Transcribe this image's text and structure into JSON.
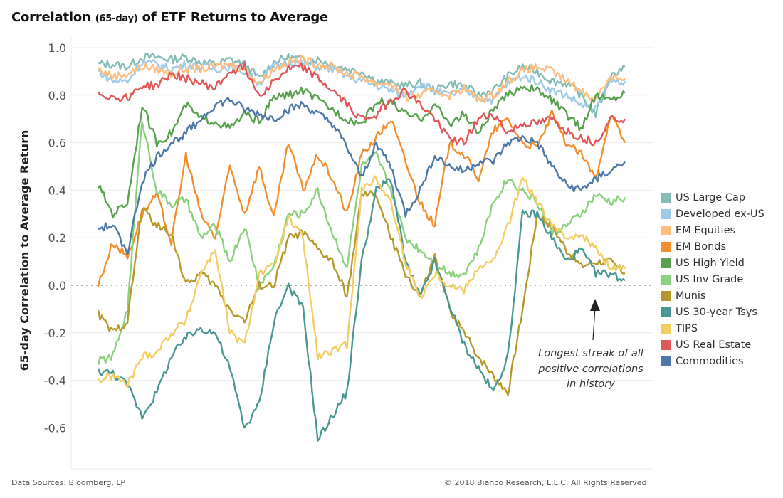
{
  "title": {
    "part1": "Correlation ",
    "part2": "(65-day)",
    "part3": " of ETF Returns to Average"
  },
  "footer": {
    "source": "Data Sources: Bloomberg, LP",
    "copyright": "© 2018 Bianco Research, L.L.C. All Rights Reserved"
  },
  "annotation": "Longest streak of all positive correlations in history",
  "chart_data": {
    "type": "line",
    "title": "Correlation (65-day) of ETF Returns to Average",
    "xlabel": "",
    "ylabel": "65-day Correlation to Average Return",
    "ylim": [
      -0.77,
      1.0
    ],
    "yticks": [
      1.0,
      0.8,
      0.6,
      0.4,
      0.2,
      0.0,
      -0.2,
      -0.4,
      -0.6
    ],
    "ytick_labels": [
      "1.0",
      "0.8",
      "0.6",
      "0.4",
      "0.2",
      "0.0",
      "-0.2",
      "-0.4",
      "-0.6"
    ],
    "grid": true,
    "zero_line": "dotted",
    "legend_position": "right",
    "x_note": "time index 0..36 (no x-axis labels shown)",
    "x": [
      0,
      1,
      2,
      3,
      4,
      5,
      6,
      7,
      8,
      9,
      10,
      11,
      12,
      13,
      14,
      15,
      16,
      17,
      18,
      19,
      20,
      21,
      22,
      23,
      24,
      25,
      26,
      27,
      28,
      29,
      30,
      31,
      32,
      33,
      34,
      35,
      36
    ],
    "series": [
      {
        "name": "US Large Cap",
        "color": "#86bcb6",
        "values": [
          0.93,
          0.93,
          0.92,
          0.96,
          0.96,
          0.95,
          0.96,
          0.94,
          0.93,
          0.95,
          0.93,
          0.87,
          0.94,
          0.96,
          0.95,
          0.95,
          0.93,
          0.91,
          0.9,
          0.86,
          0.85,
          0.84,
          0.85,
          0.82,
          0.85,
          0.84,
          0.8,
          0.82,
          0.88,
          0.92,
          0.9,
          0.86,
          0.85,
          0.8,
          0.72,
          0.88,
          0.92
        ]
      },
      {
        "name": "Developed ex-US",
        "color": "#a0cbe8",
        "values": [
          0.9,
          0.86,
          0.86,
          0.94,
          0.93,
          0.91,
          0.93,
          0.92,
          0.91,
          0.92,
          0.9,
          0.85,
          0.92,
          0.94,
          0.93,
          0.92,
          0.91,
          0.88,
          0.86,
          0.84,
          0.82,
          0.8,
          0.85,
          0.82,
          0.8,
          0.82,
          0.79,
          0.78,
          0.85,
          0.88,
          0.86,
          0.82,
          0.8,
          0.76,
          0.74,
          0.86,
          0.86
        ]
      },
      {
        "name": "EM Equities",
        "color": "#ffbe7d",
        "values": [
          0.91,
          0.88,
          0.89,
          0.92,
          0.91,
          0.89,
          0.91,
          0.91,
          0.92,
          0.93,
          0.91,
          0.85,
          0.91,
          0.94,
          0.95,
          0.93,
          0.92,
          0.89,
          0.88,
          0.85,
          0.85,
          0.79,
          0.8,
          0.82,
          0.8,
          0.83,
          0.78,
          0.8,
          0.86,
          0.9,
          0.92,
          0.9,
          0.86,
          0.82,
          0.78,
          0.88,
          0.87
        ]
      },
      {
        "name": "EM Bonds",
        "color": "#f28e2b",
        "values": [
          0.0,
          0.18,
          0.12,
          0.3,
          0.38,
          0.18,
          0.55,
          0.3,
          0.2,
          0.5,
          0.3,
          0.5,
          0.28,
          0.6,
          0.4,
          0.55,
          0.45,
          0.3,
          0.55,
          0.62,
          0.7,
          0.52,
          0.35,
          0.25,
          0.6,
          0.55,
          0.45,
          0.65,
          0.7,
          0.6,
          0.58,
          0.72,
          0.6,
          0.55,
          0.45,
          0.72,
          0.6
        ]
      },
      {
        "name": "US High Yield",
        "color": "#59a14f",
        "values": [
          0.42,
          0.3,
          0.35,
          0.76,
          0.6,
          0.64,
          0.76,
          0.7,
          0.69,
          0.66,
          0.72,
          0.69,
          0.79,
          0.8,
          0.82,
          0.78,
          0.74,
          0.7,
          0.68,
          0.77,
          0.77,
          0.72,
          0.7,
          0.76,
          0.68,
          0.72,
          0.64,
          0.74,
          0.8,
          0.84,
          0.82,
          0.78,
          0.72,
          0.66,
          0.8,
          0.78,
          0.81
        ]
      },
      {
        "name": "US Inv Grade",
        "color": "#8cd17d",
        "values": [
          -0.32,
          -0.3,
          -0.1,
          0.7,
          0.4,
          0.34,
          0.36,
          0.2,
          0.25,
          0.1,
          0.25,
          0.0,
          0.08,
          0.3,
          0.3,
          0.4,
          0.22,
          0.08,
          0.5,
          0.55,
          0.4,
          0.2,
          0.15,
          0.1,
          0.05,
          0.05,
          0.15,
          0.35,
          0.45,
          0.4,
          0.35,
          0.22,
          0.25,
          0.3,
          0.38,
          0.35,
          0.37
        ]
      },
      {
        "name": "Munis",
        "color": "#b6992d",
        "values": [
          -0.12,
          -0.2,
          -0.15,
          0.33,
          0.25,
          0.22,
          0.0,
          0.05,
          0.0,
          -0.1,
          -0.15,
          0.0,
          0.0,
          0.2,
          0.22,
          0.15,
          0.1,
          -0.05,
          0.38,
          0.38,
          0.2,
          0.05,
          -0.05,
          0.12,
          -0.1,
          -0.2,
          -0.3,
          -0.38,
          -0.45,
          -0.1,
          0.3,
          0.25,
          0.15,
          0.08,
          0.1,
          0.1,
          0.05
        ]
      },
      {
        "name": "US 30-year Tsys",
        "color": "#499894",
        "values": [
          -0.36,
          -0.37,
          -0.42,
          -0.55,
          -0.45,
          -0.3,
          -0.22,
          -0.18,
          -0.2,
          -0.35,
          -0.6,
          -0.5,
          -0.15,
          0.0,
          -0.1,
          -0.65,
          -0.55,
          -0.45,
          0.1,
          0.4,
          0.45,
          0.1,
          -0.05,
          0.1,
          -0.08,
          -0.25,
          -0.35,
          -0.45,
          -0.3,
          0.3,
          0.3,
          0.2,
          0.1,
          0.15,
          0.05,
          0.05,
          0.02
        ]
      },
      {
        "name": "TIPS",
        "color": "#f1ce63",
        "values": [
          -0.4,
          -0.38,
          -0.42,
          -0.3,
          -0.28,
          -0.2,
          -0.15,
          0.05,
          0.15,
          -0.2,
          -0.25,
          0.05,
          0.08,
          0.28,
          0.2,
          -0.3,
          -0.28,
          -0.25,
          0.4,
          0.45,
          0.35,
          0.1,
          -0.05,
          0.05,
          0.0,
          -0.02,
          0.08,
          0.1,
          0.25,
          0.45,
          0.35,
          0.25,
          0.2,
          0.22,
          0.15,
          0.08,
          0.07
        ]
      },
      {
        "name": "US Real Estate",
        "color": "#e15759",
        "values": [
          0.81,
          0.79,
          0.79,
          0.84,
          0.84,
          0.89,
          0.87,
          0.85,
          0.83,
          0.9,
          0.92,
          0.8,
          0.86,
          0.91,
          0.92,
          0.87,
          0.82,
          0.76,
          0.7,
          0.72,
          0.78,
          0.82,
          0.76,
          0.7,
          0.62,
          0.6,
          0.7,
          0.72,
          0.64,
          0.68,
          0.68,
          0.7,
          0.65,
          0.62,
          0.6,
          0.7,
          0.7
        ]
      },
      {
        "name": "Commodities",
        "color": "#4e79a7",
        "values": [
          0.24,
          0.25,
          0.14,
          0.44,
          0.54,
          0.6,
          0.64,
          0.7,
          0.76,
          0.78,
          0.74,
          0.72,
          0.7,
          0.74,
          0.76,
          0.72,
          0.68,
          0.58,
          0.45,
          0.6,
          0.5,
          0.3,
          0.4,
          0.55,
          0.5,
          0.48,
          0.52,
          0.52,
          0.6,
          0.62,
          0.6,
          0.5,
          0.42,
          0.4,
          0.45,
          0.48,
          0.52
        ]
      }
    ]
  }
}
